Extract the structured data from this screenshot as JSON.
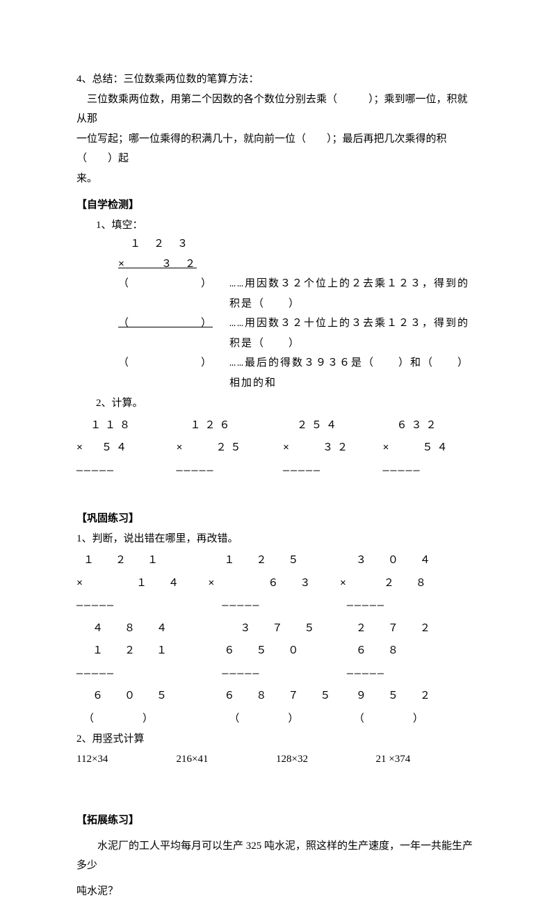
{
  "p4_title": "4、总结：三位数乘两位数的笔算方法：",
  "p4_line1": "　三位数乘两位数，用第二个因数的各个数位分别去乘（　　　）；乘到哪一位，积就从那",
  "p4_line2": "一位写起；哪一位乘得的积满几十，就向前一位（　　）；最后再把几次乘得的积（　　）起",
  "p4_line3": "来。",
  "sec_self_check": "【自学检测】",
  "q1_label": "1、填空：",
  "fill_r1": "　１　２　３",
  "fill_r2_left": "×　　　３　２",
  "fill_r3_left": "（　　　　　　）",
  "fill_r3_note": "……用因数３２个位上的２去乘１２３，得到的积是（　　）",
  "fill_r4_left": "（　　　　　　）",
  "fill_r4_note": "……用因数３２十位上的３去乘１２３，得到的积是（　　）",
  "fill_r5_left": "（　　　　　　）",
  "fill_r5_note": "……最后的得数３９３６是（　　）和（　　）相加的和",
  "q2_label": "2、计算。",
  "calc_a_top": "１１８",
  "calc_a_bot": "×　５４",
  "calc_b_top": "１２６",
  "calc_b_bot": "×　　２５",
  "calc_c_top": "２５４",
  "calc_c_bot": "×　　３２",
  "calc_d_top": "６３２",
  "calc_d_bot": "×　　５４",
  "dash5": "—————",
  "sec_consolidate": "【巩固练习】",
  "c1_label": "1、判断，说出错在哪里，再改错。",
  "j1_r1": "１　２　１",
  "j1_r2": "×　　　１　４",
  "j1_r3": "—————",
  "j1_r4": "　４　８　４",
  "j1_r5": "　１　２　１",
  "j1_r6": "—————",
  "j1_r7": "　６　０　５",
  "j1_r8": "（　　　　）",
  "j2_r1": "　１　２　５",
  "j2_r2": "×　　　６　３",
  "j2_r3": "—————",
  "j2_r4": "　　３　７　５",
  "j2_r5": "　６　５　０",
  "j2_r6": "—————",
  "j2_r7": "　６　８　７　５",
  "j2_r8": "（　　　　）",
  "j3_r1": "　３　０　４",
  "j3_r2": "×　　２　８",
  "j3_r3": "—————",
  "j3_r4": "　２　７　２",
  "j3_r5": "　６　８",
  "j3_r6": "—————",
  "j3_r7": "　９　５　２",
  "j3_r8": "（　　　　）",
  "c2_label": "2、用竖式计算",
  "v1": "112×34",
  "v2": "216×41",
  "v3": "128×32",
  "v4": "21 ×374",
  "sec_extend": "【拓展练习】",
  "extend_q1": "　　水泥厂的工人平均每月可以生产 325 吨水泥，照这样的生产速度，一年一共能生产多少",
  "extend_q2": "吨水泥？"
}
